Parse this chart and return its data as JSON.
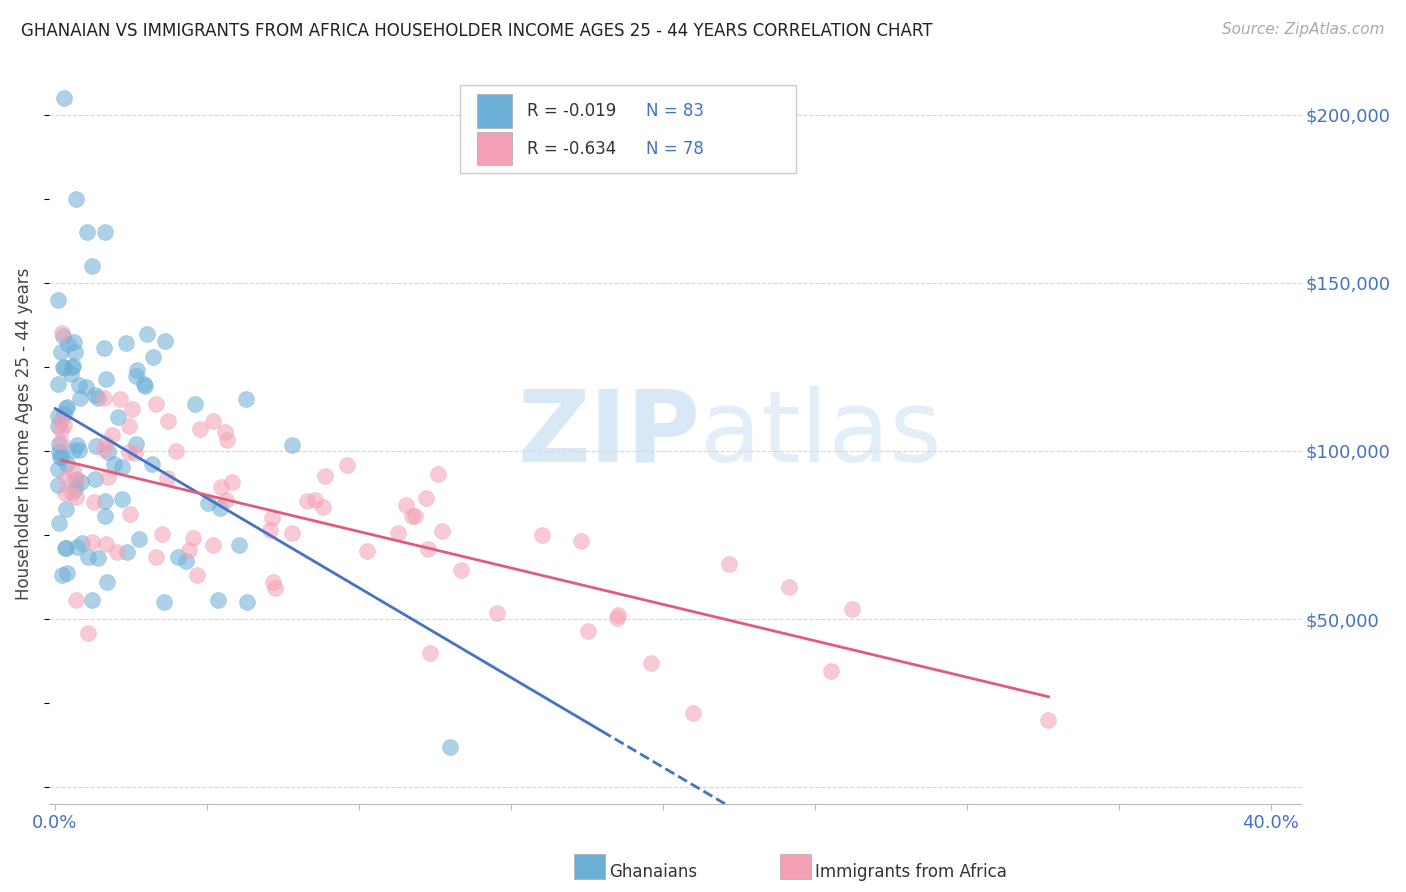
{
  "title": "GHANAIAN VS IMMIGRANTS FROM AFRICA HOUSEHOLDER INCOME AGES 25 - 44 YEARS CORRELATION CHART",
  "source": "Source: ZipAtlas.com",
  "ylabel": "Householder Income Ages 25 - 44 years",
  "xlim": [
    -0.002,
    0.41
  ],
  "ylim": [
    -5000,
    215000
  ],
  "xticks": [
    0.0,
    0.05,
    0.1,
    0.15,
    0.2,
    0.25,
    0.3,
    0.35,
    0.4
  ],
  "xtick_labels": [
    "0.0%",
    "",
    "",
    "",
    "",
    "",
    "",
    "",
    "40.0%"
  ],
  "ytick_values": [
    0,
    50000,
    100000,
    150000,
    200000
  ],
  "ytick_labels_right": [
    "",
    "$50,000",
    "$100,000",
    "$150,000",
    "$200,000"
  ],
  "ghanaian_color": "#6baed6",
  "immigrant_color": "#f4a0b5",
  "ghanaian_line_color": "#4472c4",
  "immigrant_line_color": "#e05c7a",
  "watermark_color": "#c8dff0",
  "title_fontsize": 12,
  "source_fontsize": 11,
  "axis_label_fontsize": 12,
  "tick_fontsize": 13,
  "dot_size": 130,
  "dot_alpha": 0.55,
  "grid_color": "#cccccc",
  "grid_linestyle": "--",
  "legend_R1": "R = -0.019",
  "legend_N1": "N = 83",
  "legend_R2": "R = -0.634",
  "legend_N2": "N = 78",
  "bottom_legend1": "Ghanaians",
  "bottom_legend2": "Immigrants from Africa",
  "watermark": "ZIPatlas"
}
